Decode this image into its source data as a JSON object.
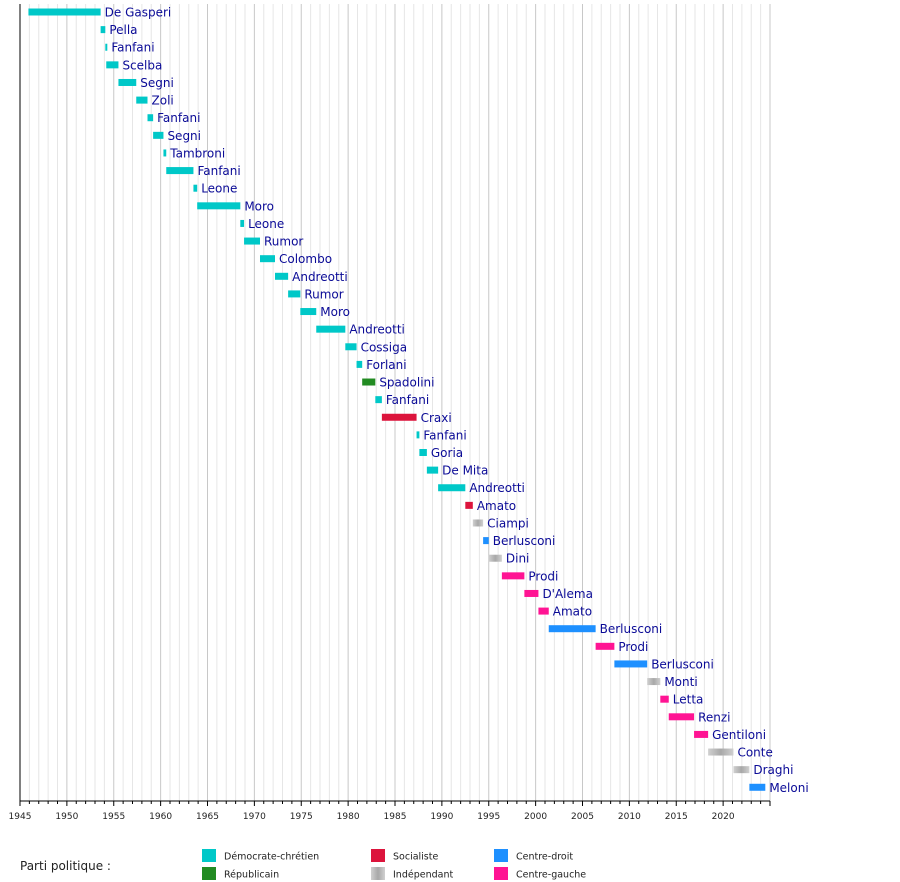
{
  "chart_data": {
    "type": "bar",
    "orientation": "horizontal-timeline",
    "xlim": [
      1945,
      2025
    ],
    "tick_step": 5,
    "xticks": [
      "1945",
      "1950",
      "1955",
      "1960",
      "1965",
      "1970",
      "1975",
      "1980",
      "1985",
      "1990",
      "1995",
      "2000",
      "2005",
      "2010",
      "2015",
      "2020"
    ],
    "grid": true,
    "legend_title": "Parti politique :",
    "parties": {
      "dc": {
        "label": "Démocrate-chrétien",
        "color": "#00c8c8"
      },
      "rep": {
        "label": "Républicain",
        "color": "#228b22"
      },
      "soc": {
        "label": "Socialiste",
        "color": "#dc143c"
      },
      "ind": {
        "label": "Indépendant",
        "color": "#b4b4b4"
      },
      "cd": {
        "label": "Centre-droit",
        "color": "#1e90ff"
      },
      "cg": {
        "label": "Centre-gauche",
        "color": "#ff1493"
      }
    },
    "legend_order": [
      "dc",
      "rep",
      "soc",
      "ind",
      "cd",
      "cg"
    ],
    "series": [
      {
        "name": "De Gasperi",
        "start": 1945.9,
        "end": 1953.6,
        "party": "dc"
      },
      {
        "name": "Pella",
        "start": 1953.6,
        "end": 1954.1,
        "party": "dc"
      },
      {
        "name": "Fanfani",
        "start": 1954.1,
        "end": 1954.2,
        "party": "dc"
      },
      {
        "name": "Scelba",
        "start": 1954.2,
        "end": 1955.5,
        "party": "dc"
      },
      {
        "name": "Segni",
        "start": 1955.5,
        "end": 1957.4,
        "party": "dc"
      },
      {
        "name": "Zoli",
        "start": 1957.4,
        "end": 1958.6,
        "party": "dc"
      },
      {
        "name": "Fanfani",
        "start": 1958.6,
        "end": 1959.2,
        "party": "dc"
      },
      {
        "name": "Segni",
        "start": 1959.2,
        "end": 1960.3,
        "party": "dc"
      },
      {
        "name": "Tambroni",
        "start": 1960.3,
        "end": 1960.6,
        "party": "dc"
      },
      {
        "name": "Fanfani",
        "start": 1960.6,
        "end": 1963.5,
        "party": "dc"
      },
      {
        "name": "Leone",
        "start": 1963.5,
        "end": 1963.9,
        "party": "dc"
      },
      {
        "name": "Moro",
        "start": 1963.9,
        "end": 1968.5,
        "party": "dc"
      },
      {
        "name": "Leone",
        "start": 1968.5,
        "end": 1968.9,
        "party": "dc"
      },
      {
        "name": "Rumor",
        "start": 1968.9,
        "end": 1970.6,
        "party": "dc"
      },
      {
        "name": "Colombo",
        "start": 1970.6,
        "end": 1972.2,
        "party": "dc"
      },
      {
        "name": "Andreotti",
        "start": 1972.2,
        "end": 1973.6,
        "party": "dc"
      },
      {
        "name": "Rumor",
        "start": 1973.6,
        "end": 1974.9,
        "party": "dc"
      },
      {
        "name": "Moro",
        "start": 1974.9,
        "end": 1976.6,
        "party": "dc"
      },
      {
        "name": "Andreotti",
        "start": 1976.6,
        "end": 1979.7,
        "party": "dc"
      },
      {
        "name": "Cossiga",
        "start": 1979.7,
        "end": 1980.9,
        "party": "dc"
      },
      {
        "name": "Forlani",
        "start": 1980.9,
        "end": 1981.5,
        "party": "dc"
      },
      {
        "name": "Spadolini",
        "start": 1981.5,
        "end": 1982.9,
        "party": "rep"
      },
      {
        "name": "Fanfani",
        "start": 1982.9,
        "end": 1983.6,
        "party": "dc"
      },
      {
        "name": "Craxi",
        "start": 1983.6,
        "end": 1987.3,
        "party": "soc"
      },
      {
        "name": "Fanfani",
        "start": 1987.3,
        "end": 1987.6,
        "party": "dc"
      },
      {
        "name": "Goria",
        "start": 1987.6,
        "end": 1988.4,
        "party": "dc"
      },
      {
        "name": "De Mita",
        "start": 1988.4,
        "end": 1989.6,
        "party": "dc"
      },
      {
        "name": "Andreotti",
        "start": 1989.6,
        "end": 1992.5,
        "party": "dc"
      },
      {
        "name": "Amato",
        "start": 1992.5,
        "end": 1993.3,
        "party": "soc"
      },
      {
        "name": "Ciampi",
        "start": 1993.3,
        "end": 1994.4,
        "party": "ind"
      },
      {
        "name": "Berlusconi",
        "start": 1994.4,
        "end": 1995.0,
        "party": "cd"
      },
      {
        "name": "Dini",
        "start": 1995.0,
        "end": 1996.4,
        "party": "ind"
      },
      {
        "name": "Prodi",
        "start": 1996.4,
        "end": 1998.8,
        "party": "cg"
      },
      {
        "name": "D'Alema",
        "start": 1998.8,
        "end": 2000.3,
        "party": "cg"
      },
      {
        "name": "Amato",
        "start": 2000.3,
        "end": 2001.4,
        "party": "cg"
      },
      {
        "name": "Berlusconi",
        "start": 2001.4,
        "end": 2006.4,
        "party": "cd"
      },
      {
        "name": "Prodi",
        "start": 2006.4,
        "end": 2008.4,
        "party": "cg"
      },
      {
        "name": "Berlusconi",
        "start": 2008.4,
        "end": 2011.9,
        "party": "cd"
      },
      {
        "name": "Monti",
        "start": 2011.9,
        "end": 2013.3,
        "party": "ind"
      },
      {
        "name": "Letta",
        "start": 2013.3,
        "end": 2014.2,
        "party": "cg"
      },
      {
        "name": "Renzi",
        "start": 2014.2,
        "end": 2016.9,
        "party": "cg"
      },
      {
        "name": "Gentiloni",
        "start": 2016.9,
        "end": 2018.4,
        "party": "cg"
      },
      {
        "name": "Conte",
        "start": 2018.4,
        "end": 2021.1,
        "party": "ind"
      },
      {
        "name": "Draghi",
        "start": 2021.1,
        "end": 2022.8,
        "party": "ind"
      },
      {
        "name": "Meloni",
        "start": 2022.8,
        "end": 2024.5,
        "party": "cd"
      }
    ]
  }
}
